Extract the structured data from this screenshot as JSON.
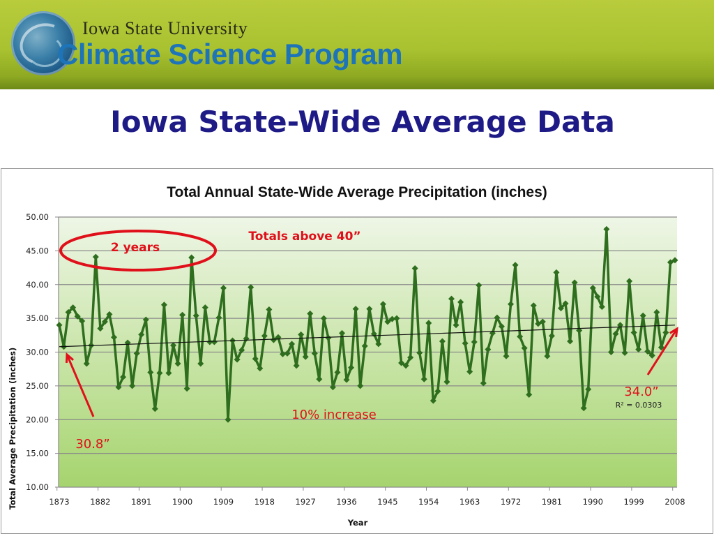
{
  "header": {
    "university": "Iowa State University",
    "program": "Climate Science Program",
    "logo_icon": "globe-swirl-icon"
  },
  "slide_title": "Iowa State-Wide Average Data",
  "colors": {
    "banner": "#a9c230",
    "program_text": "#1d74b8",
    "title_text": "#1e1a86",
    "series": "#2e6e1e",
    "annotation": "#e0101a",
    "plot_top": "#eef6e6",
    "plot_bottom": "#a6d46e"
  },
  "chart_data": {
    "type": "line",
    "title": "Total Annual State-Wide Average Precipitation (inches)",
    "xlabel": "Year",
    "ylabel": "Total Average Precipitation (inches)",
    "ylim": [
      10,
      50
    ],
    "yticks": [
      "10.00",
      "15.00",
      "20.00",
      "25.00",
      "30.00",
      "35.00",
      "40.00",
      "45.00",
      "50.00"
    ],
    "xtick_labels": [
      "1873",
      "1882",
      "1891",
      "1900",
      "1909",
      "1918",
      "1927",
      "1936",
      "1945",
      "1954",
      "1963",
      "1972",
      "1981",
      "1990",
      "1999",
      "2008"
    ],
    "grid": "horizontal",
    "x_start": 1873,
    "x_end": 2008,
    "series": [
      {
        "name": "Annual precipitation",
        "marker": "diamond",
        "values": [
          34.0,
          30.8,
          35.9,
          36.6,
          35.3,
          34.6,
          28.3,
          31.0,
          44.1,
          33.5,
          34.5,
          35.6,
          32.2,
          24.8,
          26.3,
          31.4,
          25.0,
          29.8,
          32.6,
          34.8,
          27.0,
          21.6,
          26.9,
          37.0,
          26.9,
          31.0,
          28.3,
          35.5,
          24.6,
          44.0,
          35.4,
          28.3,
          36.6,
          31.5,
          31.5,
          35.1,
          39.5,
          20.0,
          31.7,
          28.9,
          30.3,
          32.0,
          39.6,
          29.0,
          27.6,
          32.4,
          36.3,
          31.8,
          32.2,
          29.7,
          29.8,
          31.2,
          28.0,
          32.6,
          29.3,
          35.7,
          29.8,
          26.0,
          35.0,
          32.1,
          24.8,
          27.0,
          32.8,
          25.9,
          27.7,
          36.4,
          25.0,
          30.9,
          36.4,
          32.7,
          31.2,
          37.1,
          34.5,
          34.9,
          35.0,
          28.4,
          28.0,
          29.2,
          42.4,
          29.9,
          26.0,
          34.3,
          22.8,
          24.2,
          31.6,
          25.6,
          37.9,
          34.0,
          37.4,
          31.3,
          27.1,
          31.5,
          39.9,
          25.4,
          30.4,
          32.8,
          35.1,
          33.8,
          29.4,
          37.1,
          42.9,
          32.3,
          30.6,
          23.7,
          36.9,
          34.2,
          34.5,
          29.4,
          32.4,
          41.8,
          36.5,
          37.2,
          31.6,
          40.3,
          33.2,
          21.7,
          24.5,
          39.5,
          38.2,
          36.7,
          48.2,
          30.0,
          32.7,
          34.0,
          29.9,
          40.5,
          32.9,
          30.4,
          35.4,
          30.1,
          29.5,
          35.9,
          30.7,
          32.9,
          43.3,
          43.6
        ]
      }
    ],
    "trendline": {
      "type": "linear",
      "start_value": 30.8,
      "end_value": 34.0,
      "r_squared_label": "R² = 0.0303"
    },
    "annotations": {
      "circle_label": "2 years",
      "above_40": "Totals above 40”",
      "increase": "10% increase",
      "start_value_label": "30.8”",
      "end_value_label": "34.0”"
    }
  }
}
